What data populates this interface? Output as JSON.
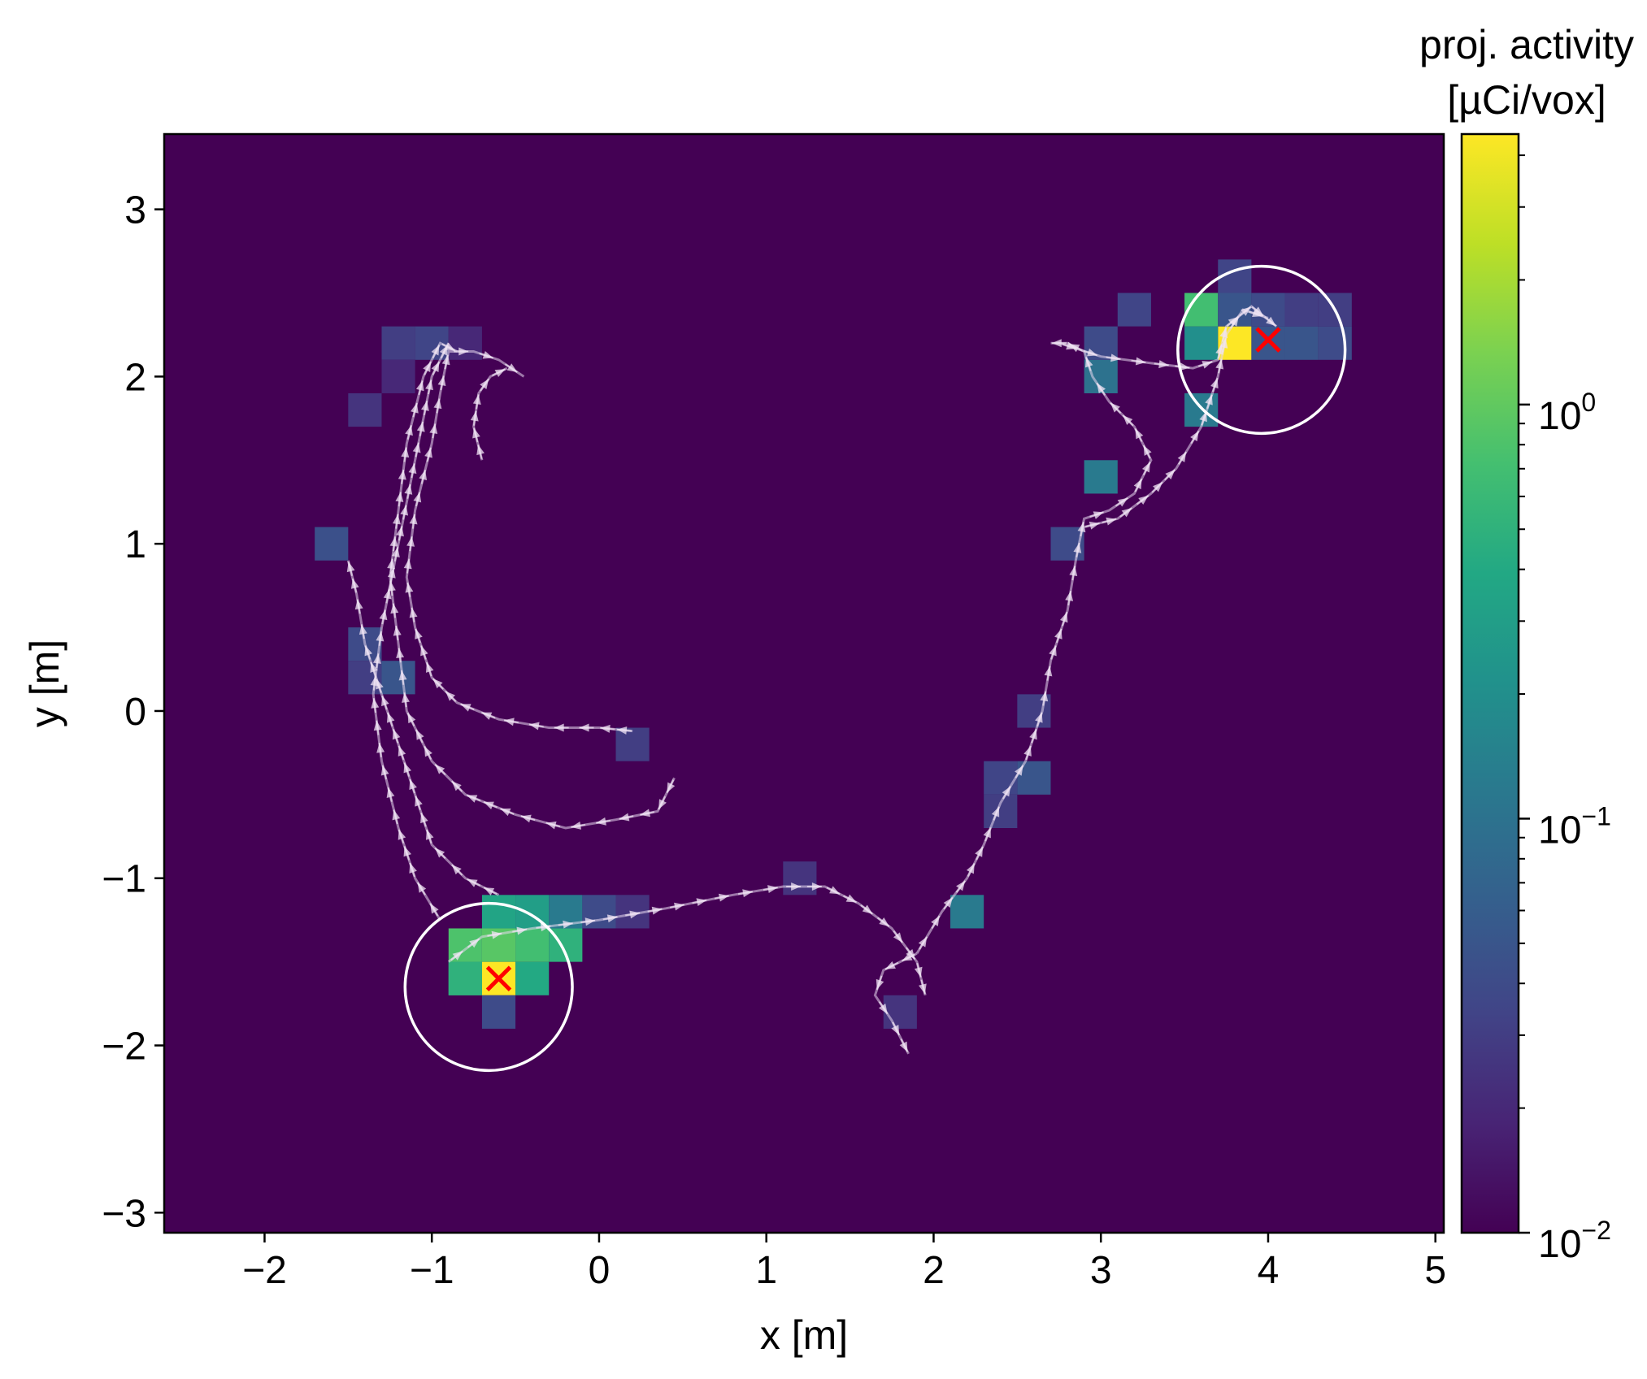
{
  "chart_data": {
    "type": "heatmap",
    "xlabel": "x [m]",
    "ylabel": "y [m]",
    "xlim": [
      -2.6,
      5.05
    ],
    "ylim": [
      -3.12,
      3.45
    ],
    "xticks": [
      -2,
      -1,
      0,
      1,
      2,
      3,
      4,
      5
    ],
    "yticks": [
      -3,
      -2,
      -1,
      0,
      1,
      2,
      3
    ],
    "grid": false,
    "background_color": "#440154",
    "cell_size_m": 0.2,
    "colorbar": {
      "title_line1": "proj. activity",
      "title_line2": "[µCi/vox]",
      "scale": "log",
      "range": [
        0.01,
        4.5
      ],
      "major_ticks": [
        {
          "value": 0.01,
          "mantissa": "10",
          "exponent": "−2"
        },
        {
          "value": 0.1,
          "mantissa": "10",
          "exponent": "−1"
        },
        {
          "value": 1,
          "mantissa": "10",
          "exponent": "0"
        }
      ],
      "minor_ticks": [
        0.02,
        0.03,
        0.04,
        0.05,
        0.06,
        0.07,
        0.08,
        0.09,
        0.2,
        0.3,
        0.4,
        0.5,
        0.6,
        0.7,
        0.8,
        0.9,
        2,
        3,
        4
      ]
    },
    "cells": [
      {
        "x": -0.6,
        "y": -1.6,
        "v": 4.5
      },
      {
        "x": -0.8,
        "y": -1.6,
        "v": 0.5
      },
      {
        "x": -0.4,
        "y": -1.6,
        "v": 0.4
      },
      {
        "x": -0.8,
        "y": -1.4,
        "v": 0.8
      },
      {
        "x": -0.6,
        "y": -1.4,
        "v": 0.9
      },
      {
        "x": -0.4,
        "y": -1.4,
        "v": 0.7
      },
      {
        "x": -0.2,
        "y": -1.4,
        "v": 0.5
      },
      {
        "x": -0.6,
        "y": -1.2,
        "v": 0.35
      },
      {
        "x": -0.4,
        "y": -1.2,
        "v": 0.3
      },
      {
        "x": -0.2,
        "y": -1.2,
        "v": 0.12
      },
      {
        "x": -0.8,
        "y": -1.6,
        "v": 0.5
      },
      {
        "x": -0.6,
        "y": -1.8,
        "v": 0.04
      },
      {
        "x": 0.0,
        "y": -1.2,
        "v": 0.04
      },
      {
        "x": 0.2,
        "y": -1.2,
        "v": 0.025
      },
      {
        "x": 1.2,
        "y": -1.0,
        "v": 0.025
      },
      {
        "x": 2.2,
        "y": -1.2,
        "v": 0.12
      },
      {
        "x": 1.8,
        "y": -1.8,
        "v": 0.025
      },
      {
        "x": 2.4,
        "y": -0.6,
        "v": 0.03
      },
      {
        "x": 2.4,
        "y": -0.4,
        "v": 0.035
      },
      {
        "x": 2.6,
        "y": -0.4,
        "v": 0.05
      },
      {
        "x": 2.6,
        "y": 0.0,
        "v": 0.03
      },
      {
        "x": 2.8,
        "y": 1.0,
        "v": 0.04
      },
      {
        "x": 3.0,
        "y": 1.4,
        "v": 0.12
      },
      {
        "x": 3.6,
        "y": 1.8,
        "v": 0.12
      },
      {
        "x": 3.0,
        "y": 2.2,
        "v": 0.04
      },
      {
        "x": 3.0,
        "y": 2.0,
        "v": 0.1
      },
      {
        "x": 3.2,
        "y": 2.4,
        "v": 0.035
      },
      {
        "x": 3.8,
        "y": 2.2,
        "v": 4.5
      },
      {
        "x": 3.6,
        "y": 2.2,
        "v": 0.2
      },
      {
        "x": 3.6,
        "y": 2.4,
        "v": 0.7
      },
      {
        "x": 3.8,
        "y": 2.4,
        "v": 0.05
      },
      {
        "x": 3.8,
        "y": 2.6,
        "v": 0.035
      },
      {
        "x": 4.0,
        "y": 2.2,
        "v": 0.05
      },
      {
        "x": 4.0,
        "y": 2.4,
        "v": 0.04
      },
      {
        "x": 4.2,
        "y": 2.2,
        "v": 0.05
      },
      {
        "x": 4.2,
        "y": 2.4,
        "v": 0.03
      },
      {
        "x": 4.4,
        "y": 2.2,
        "v": 0.04
      },
      {
        "x": 4.4,
        "y": 2.4,
        "v": 0.03
      },
      {
        "x": -1.2,
        "y": 2.2,
        "v": 0.03
      },
      {
        "x": -1.0,
        "y": 2.2,
        "v": 0.035
      },
      {
        "x": -0.8,
        "y": 2.2,
        "v": 0.02
      },
      {
        "x": -1.2,
        "y": 2.0,
        "v": 0.02
      },
      {
        "x": -1.4,
        "y": 1.8,
        "v": 0.025
      },
      {
        "x": -1.6,
        "y": 1.0,
        "v": 0.045
      },
      {
        "x": -1.4,
        "y": 0.4,
        "v": 0.04
      },
      {
        "x": -1.4,
        "y": 0.2,
        "v": 0.03
      },
      {
        "x": -1.2,
        "y": 0.2,
        "v": 0.05
      },
      {
        "x": 0.2,
        "y": -0.2,
        "v": 0.03
      }
    ],
    "sources": [
      {
        "name": "",
        "x": -0.6,
        "y": -1.6
      },
      {
        "name": "",
        "x": 4.0,
        "y": 2.22
      }
    ],
    "circles": [
      {
        "cx": -0.66,
        "cy": -1.65,
        "r": 0.5
      },
      {
        "cx": 3.96,
        "cy": 2.16,
        "r": 0.5
      }
    ],
    "trajectories": [
      [
        [
          0.2,
          -0.12
        ],
        [
          0.0,
          -0.1
        ],
        [
          -0.3,
          -0.1
        ],
        [
          -0.6,
          -0.05
        ],
        [
          -0.85,
          0.05
        ],
        [
          -1.0,
          0.2
        ],
        [
          -1.1,
          0.5
        ],
        [
          -1.15,
          0.8
        ],
        [
          -1.1,
          1.2
        ],
        [
          -1.0,
          1.6
        ],
        [
          -0.95,
          1.9
        ],
        [
          -0.9,
          2.15
        ],
        [
          -0.75,
          2.15
        ],
        [
          -0.6,
          2.1
        ],
        [
          -0.45,
          2.0
        ]
      ],
      [
        [
          0.45,
          -0.4
        ],
        [
          0.35,
          -0.6
        ],
        [
          0.1,
          -0.65
        ],
        [
          -0.2,
          -0.7
        ],
        [
          -0.5,
          -0.62
        ],
        [
          -0.8,
          -0.5
        ],
        [
          -1.0,
          -0.3
        ],
        [
          -1.15,
          0.0
        ],
        [
          -1.2,
          0.4
        ],
        [
          -1.25,
          0.8
        ],
        [
          -1.2,
          1.2
        ],
        [
          -1.15,
          1.6
        ],
        [
          -1.05,
          2.0
        ],
        [
          -0.95,
          2.2
        ],
        [
          -0.85,
          2.15
        ]
      ],
      [
        [
          -0.7,
          1.5
        ],
        [
          -0.75,
          1.7
        ],
        [
          -0.72,
          1.9
        ],
        [
          -0.65,
          2.0
        ],
        [
          -0.55,
          2.05
        ]
      ],
      [
        [
          -0.6,
          -1.1
        ],
        [
          -0.8,
          -1.0
        ],
        [
          -1.0,
          -0.8
        ],
        [
          -1.1,
          -0.5
        ],
        [
          -1.2,
          -0.2
        ],
        [
          -1.3,
          0.1
        ],
        [
          -1.4,
          0.4
        ],
        [
          -1.45,
          0.7
        ],
        [
          -1.5,
          0.9
        ]
      ],
      [
        [
          -0.95,
          -1.25
        ],
        [
          -1.1,
          -1.0
        ],
        [
          -1.2,
          -0.7
        ],
        [
          -1.3,
          -0.3
        ],
        [
          -1.35,
          0.1
        ],
        [
          -1.3,
          0.5
        ],
        [
          -1.2,
          1.0
        ],
        [
          -1.1,
          1.5
        ],
        [
          -1.0,
          2.0
        ],
        [
          -0.9,
          2.2
        ]
      ],
      [
        [
          -0.9,
          -1.5
        ],
        [
          -0.7,
          -1.35
        ],
        [
          -0.4,
          -1.3
        ],
        [
          0.0,
          -1.25
        ],
        [
          0.4,
          -1.18
        ],
        [
          0.8,
          -1.1
        ],
        [
          1.1,
          -1.05
        ],
        [
          1.35,
          -1.05
        ],
        [
          1.55,
          -1.15
        ],
        [
          1.75,
          -1.3
        ],
        [
          1.9,
          -1.5
        ],
        [
          1.95,
          -1.7
        ]
      ],
      [
        [
          1.9,
          -1.45
        ],
        [
          1.7,
          -1.55
        ],
        [
          1.65,
          -1.7
        ],
        [
          1.75,
          -1.85
        ],
        [
          1.85,
          -2.05
        ]
      ],
      [
        [
          1.9,
          -1.45
        ],
        [
          2.05,
          -1.2
        ],
        [
          2.2,
          -1.0
        ],
        [
          2.3,
          -0.8
        ],
        [
          2.4,
          -0.55
        ],
        [
          2.55,
          -0.3
        ],
        [
          2.65,
          0.0
        ],
        [
          2.7,
          0.3
        ],
        [
          2.8,
          0.6
        ],
        [
          2.85,
          0.9
        ],
        [
          2.9,
          1.15
        ],
        [
          3.05,
          1.2
        ],
        [
          3.2,
          1.3
        ],
        [
          3.3,
          1.5
        ],
        [
          3.2,
          1.7
        ],
        [
          3.05,
          1.85
        ],
        [
          2.95,
          2.0
        ],
        [
          2.9,
          2.15
        ],
        [
          2.8,
          2.2
        ],
        [
          2.7,
          2.2
        ]
      ],
      [
        [
          2.9,
          1.1
        ],
        [
          3.1,
          1.15
        ],
        [
          3.3,
          1.3
        ],
        [
          3.45,
          1.45
        ],
        [
          3.6,
          1.7
        ],
        [
          3.7,
          2.0
        ],
        [
          3.75,
          2.25
        ],
        [
          3.85,
          2.4
        ],
        [
          4.0,
          2.35
        ]
      ],
      [
        [
          2.75,
          2.2
        ],
        [
          3.0,
          2.12
        ],
        [
          3.3,
          2.08
        ],
        [
          3.55,
          2.05
        ],
        [
          3.7,
          2.1
        ],
        [
          3.75,
          2.3
        ],
        [
          3.9,
          2.42
        ],
        [
          4.05,
          2.3
        ]
      ]
    ],
    "axis_fontsize_note": ""
  }
}
